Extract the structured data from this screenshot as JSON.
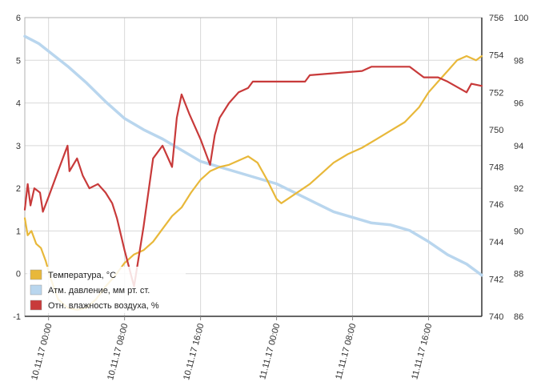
{
  "chart_data": {
    "type": "line",
    "title": "",
    "xlabel": "",
    "x_ticks": [
      "10.11.17 00:00",
      "10.11.17 08:00",
      "10.11.17 16:00",
      "11.11.17 00:00",
      "11.11.17 08:00",
      "11.11.17 16:00"
    ],
    "x_range_hours": [
      -2.5,
      45.6
    ],
    "axes": {
      "left": {
        "ylim": [
          -1,
          6
        ],
        "ticks": [
          "-1",
          "0",
          "1",
          "2",
          "3",
          "4",
          "5",
          "6"
        ]
      },
      "right1": {
        "ylim": [
          740,
          756
        ],
        "ticks": [
          "740",
          "742",
          "744",
          "746",
          "748",
          "750",
          "752",
          "754",
          "756"
        ]
      },
      "right2": {
        "ylim": [
          86,
          100
        ],
        "ticks": [
          "86",
          "88",
          "90",
          "92",
          "94",
          "96",
          "98",
          "100"
        ]
      }
    },
    "grid": true,
    "legend_position": "bottom-left",
    "series": [
      {
        "name": "Температура, °C",
        "axis": "left",
        "color": "#e8b83a",
        "points": [
          [
            -2.5,
            1.3
          ],
          [
            -2.2,
            0.9
          ],
          [
            -1.8,
            1.0
          ],
          [
            -1.3,
            0.7
          ],
          [
            -0.8,
            0.6
          ],
          [
            -0.3,
            0.3
          ],
          [
            0.2,
            -0.1
          ],
          [
            1.0,
            -0.6
          ],
          [
            2.0,
            -0.8
          ],
          [
            3.0,
            -0.85
          ],
          [
            4.0,
            -0.8
          ],
          [
            5.0,
            -0.6
          ],
          [
            6.0,
            -0.3
          ],
          [
            7.0,
            -0.05
          ],
          [
            8.0,
            0.25
          ],
          [
            9.0,
            0.45
          ],
          [
            10.0,
            0.55
          ],
          [
            11.0,
            0.75
          ],
          [
            12.0,
            1.05
          ],
          [
            13.0,
            1.35
          ],
          [
            14.0,
            1.55
          ],
          [
            15.0,
            1.9
          ],
          [
            16.0,
            2.2
          ],
          [
            17.0,
            2.4
          ],
          [
            18.0,
            2.5
          ],
          [
            19.0,
            2.55
          ],
          [
            20.0,
            2.65
          ],
          [
            21.0,
            2.75
          ],
          [
            22.0,
            2.6
          ],
          [
            23.0,
            2.2
          ],
          [
            24.0,
            1.75
          ],
          [
            24.5,
            1.65
          ],
          [
            25.5,
            1.8
          ],
          [
            26.5,
            1.95
          ],
          [
            27.5,
            2.1
          ],
          [
            28.5,
            2.3
          ],
          [
            30.0,
            2.6
          ],
          [
            31.5,
            2.8
          ],
          [
            33.0,
            2.95
          ],
          [
            34.5,
            3.15
          ],
          [
            36.0,
            3.35
          ],
          [
            37.5,
            3.55
          ],
          [
            39.0,
            3.9
          ],
          [
            40.0,
            4.25
          ],
          [
            41.0,
            4.5
          ],
          [
            42.0,
            4.75
          ],
          [
            43.0,
            5.0
          ],
          [
            43.5,
            5.05
          ],
          [
            44.0,
            5.1
          ],
          [
            44.5,
            5.05
          ],
          [
            45.0,
            5.0
          ],
          [
            45.6,
            5.1
          ]
        ]
      },
      {
        "name": "Атм. давление, мм рт. ст.",
        "axis": "right1",
        "color": "#b9d6ee",
        "points": [
          [
            -2.5,
            755.0
          ],
          [
            -1.0,
            754.6
          ],
          [
            0.0,
            754.2
          ],
          [
            2.0,
            753.4
          ],
          [
            4.0,
            752.5
          ],
          [
            6.0,
            751.5
          ],
          [
            8.0,
            750.6
          ],
          [
            10.0,
            750.0
          ],
          [
            12.0,
            749.5
          ],
          [
            14.0,
            748.9
          ],
          [
            16.0,
            748.3
          ],
          [
            18.0,
            748.0
          ],
          [
            20.0,
            747.7
          ],
          [
            22.0,
            747.4
          ],
          [
            24.0,
            747.1
          ],
          [
            26.0,
            746.6
          ],
          [
            28.0,
            746.1
          ],
          [
            30.0,
            745.6
          ],
          [
            32.0,
            745.3
          ],
          [
            34.0,
            745.0
          ],
          [
            36.0,
            744.9
          ],
          [
            38.0,
            744.6
          ],
          [
            40.0,
            744.0
          ],
          [
            42.0,
            743.3
          ],
          [
            44.0,
            742.8
          ],
          [
            45.6,
            742.2
          ]
        ]
      },
      {
        "name": "Отн. влажность воздуха, %",
        "axis": "right2",
        "color": "#c83a3a",
        "points": [
          [
            -2.5,
            91.0
          ],
          [
            -2.2,
            92.2
          ],
          [
            -1.9,
            91.2
          ],
          [
            -1.5,
            92.0
          ],
          [
            -0.9,
            91.8
          ],
          [
            -0.6,
            90.9
          ],
          [
            0.0,
            91.6
          ],
          [
            1.0,
            92.8
          ],
          [
            2.0,
            94.0
          ],
          [
            2.2,
            92.8
          ],
          [
            3.0,
            93.4
          ],
          [
            3.6,
            92.6
          ],
          [
            4.3,
            92.0
          ],
          [
            5.2,
            92.2
          ],
          [
            6.0,
            91.8
          ],
          [
            6.7,
            91.3
          ],
          [
            7.2,
            90.6
          ],
          [
            8.0,
            89.1
          ],
          [
            9.0,
            87.4
          ],
          [
            10.0,
            90.2
          ],
          [
            11.0,
            93.4
          ],
          [
            12.0,
            94.0
          ],
          [
            13.0,
            93.0
          ],
          [
            13.5,
            95.3
          ],
          [
            14.0,
            96.4
          ],
          [
            14.8,
            95.5
          ],
          [
            16.0,
            94.3
          ],
          [
            17.0,
            93.1
          ],
          [
            17.5,
            94.5
          ],
          [
            18.0,
            95.3
          ],
          [
            19.0,
            96.0
          ],
          [
            20.0,
            96.5
          ],
          [
            21.0,
            96.7
          ],
          [
            21.5,
            97.0
          ],
          [
            27.0,
            97.0
          ],
          [
            27.5,
            97.3
          ],
          [
            33.0,
            97.5
          ],
          [
            34.0,
            97.7
          ],
          [
            38.0,
            97.7
          ],
          [
            39.5,
            97.2
          ],
          [
            41.0,
            97.2
          ],
          [
            42.0,
            97.0
          ],
          [
            44.0,
            96.5
          ],
          [
            44.5,
            96.9
          ],
          [
            45.6,
            96.8
          ]
        ]
      }
    ]
  }
}
